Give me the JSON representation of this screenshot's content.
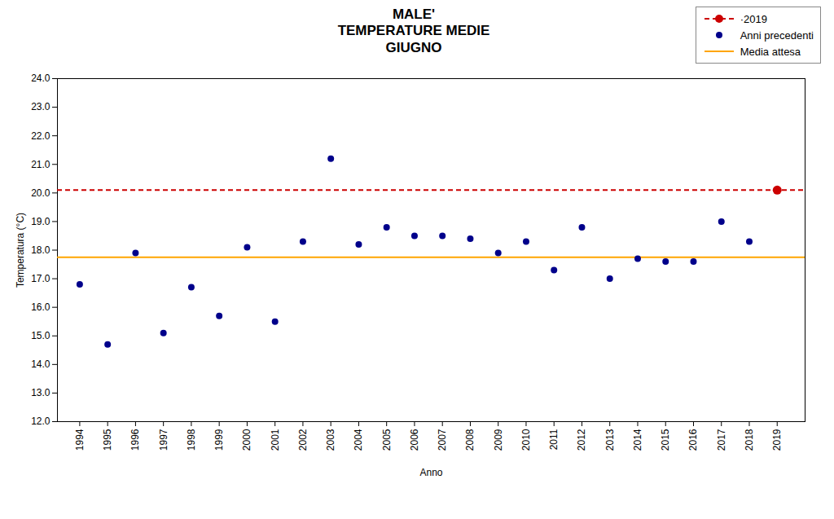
{
  "chart_data": {
    "type": "scatter",
    "title": "MALE'\nTEMPERATURE MEDIE\nGIUGNO",
    "xlabel": "Anno",
    "ylabel": "Temperatura (°C)",
    "series": [
      {
        "name": "·2019",
        "type": "scatter",
        "color": "#CC0000",
        "marker": "o",
        "line_style": "dashed",
        "x": [
          2019
        ],
        "values": [
          20.1
        ]
      },
      {
        "name": "Anni precedenti",
        "type": "scatter",
        "color": "#00008B",
        "marker": "o",
        "x": [
          1994,
          1995,
          1996,
          1997,
          1998,
          1999,
          2000,
          2001,
          2002,
          2003,
          2004,
          2005,
          2006,
          2007,
          2008,
          2009,
          2010,
          2011,
          2012,
          2013,
          2014,
          2015,
          2016,
          2017,
          2018
        ],
        "values": [
          16.8,
          14.7,
          17.9,
          15.1,
          16.7,
          15.7,
          18.1,
          15.5,
          18.3,
          21.2,
          18.2,
          18.8,
          18.5,
          18.5,
          18.4,
          17.9,
          18.3,
          17.3,
          18.8,
          17.0,
          17.7,
          17.6,
          17.6,
          19.0,
          18.3
        ]
      },
      {
        "name": "Media attesa",
        "type": "hline",
        "color": "#FFA500",
        "line_style": "solid",
        "values": [
          17.75
        ]
      }
    ],
    "xlim": [
      1993.2,
      2020.0
    ],
    "xticks": [
      1994,
      1995,
      1996,
      1997,
      1998,
      1999,
      2000,
      2001,
      2002,
      2003,
      2004,
      2005,
      2006,
      2007,
      2008,
      2009,
      2010,
      2011,
      2012,
      2013,
      2014,
      2015,
      2016,
      2017,
      2018,
      2019
    ],
    "ylim": [
      12.0,
      24.0
    ],
    "yticks": [
      {
        "value": 12.0,
        "label": "12.0"
      },
      {
        "value": 13.0,
        "label": "13.0"
      },
      {
        "value": 14.0,
        "label": "14.0"
      },
      {
        "value": 15.0,
        "label": "15.0"
      },
      {
        "value": 16.0,
        "label": "16.0"
      },
      {
        "value": 17.0,
        "label": "17.0"
      },
      {
        "value": 18.0,
        "label": "18.0"
      },
      {
        "value": 19.0,
        "label": "19.0"
      },
      {
        "value": 20.0,
        "label": "20.0"
      },
      {
        "value": 21.0,
        "label": "21.0"
      },
      {
        "value": 22.0,
        "label": "22.0"
      },
      {
        "value": 23.0,
        "label": "23.0"
      },
      {
        "value": 24.0,
        "label": "24.0"
      }
    ],
    "grid": false,
    "legend": "upper right"
  }
}
